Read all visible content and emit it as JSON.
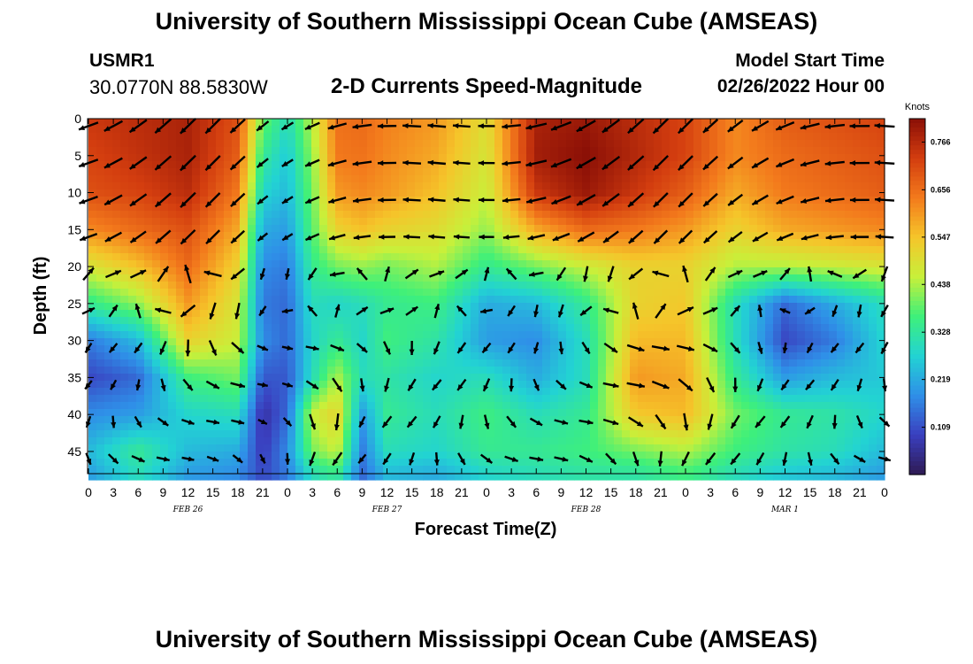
{
  "page": {
    "title": "University of Southern Mississippi Ocean Cube (AMSEAS)",
    "station": "USMR1",
    "coords": "30.0770N  88.5830W",
    "product": "2-D Currents Speed-Magnitude",
    "model_start_label": "Model Start Time",
    "model_start_value": "02/26/2022 Hour 00",
    "footer_title": "University of Southern Mississippi Ocean Cube (AMSEAS)"
  },
  "colors": {
    "scale": [
      "#2e1a53",
      "#3a3fbf",
      "#2f8fe8",
      "#22d3d3",
      "#3ef07a",
      "#c8f03a",
      "#f5c52a",
      "#f37a1c",
      "#d33d0f",
      "#8a0f06"
    ],
    "arrow": "#000000"
  },
  "chart_data": {
    "type": "heatmap",
    "title": "2-D Currents Speed-Magnitude",
    "xlabel": "Forecast Time(Z)",
    "ylabel": "Depth (ft)",
    "x_tick_labels": [
      "0",
      "3",
      "6",
      "9",
      "12",
      "15",
      "18",
      "21",
      "0",
      "3",
      "6",
      "9",
      "12",
      "15",
      "18",
      "21",
      "0",
      "3",
      "6",
      "9",
      "12",
      "15",
      "18",
      "21",
      "0",
      "3",
      "6",
      "9",
      "12",
      "15",
      "18",
      "21",
      "0"
    ],
    "x_range_hours": [
      0,
      96
    ],
    "date_labels": [
      {
        "label": "FEB 26",
        "hour": 12
      },
      {
        "label": "FEB 27",
        "hour": 36
      },
      {
        "label": "FEB 28",
        "hour": 60
      },
      {
        "label": "MAR 1",
        "hour": 84
      }
    ],
    "y_tick_labels": [
      "0",
      "5",
      "10",
      "15",
      "20",
      "25",
      "30",
      "35",
      "40",
      "45"
    ],
    "y_range_ft": [
      0,
      48
    ],
    "y_inverted": true,
    "colorbar": {
      "unit": "Knots",
      "ticks": [
        "0.766",
        "0.656",
        "0.547",
        "0.438",
        "0.328",
        "0.219",
        "0.109"
      ],
      "range": [
        0,
        0.82
      ]
    },
    "speed_field": {
      "description_hours": [
        0,
        6,
        12,
        18,
        21,
        24,
        27,
        30,
        33,
        36,
        42,
        48,
        54,
        60,
        66,
        72,
        78,
        84,
        90,
        96
      ],
      "depths_ft": [
        0,
        5,
        10,
        15,
        20,
        25,
        30,
        35,
        40,
        45,
        48
      ],
      "values": [
        [
          0.74,
          0.76,
          0.78,
          0.7,
          0.4,
          0.3,
          0.45,
          0.65,
          0.66,
          0.63,
          0.6,
          0.5,
          0.78,
          0.8,
          0.76,
          0.72,
          0.62,
          0.68,
          0.7,
          0.72
        ],
        [
          0.72,
          0.75,
          0.78,
          0.68,
          0.34,
          0.26,
          0.42,
          0.64,
          0.65,
          0.62,
          0.58,
          0.48,
          0.79,
          0.82,
          0.77,
          0.72,
          0.62,
          0.66,
          0.68,
          0.7
        ],
        [
          0.7,
          0.72,
          0.76,
          0.64,
          0.28,
          0.24,
          0.4,
          0.6,
          0.62,
          0.6,
          0.55,
          0.46,
          0.74,
          0.8,
          0.74,
          0.68,
          0.58,
          0.64,
          0.66,
          0.68
        ],
        [
          0.62,
          0.66,
          0.7,
          0.58,
          0.22,
          0.2,
          0.38,
          0.52,
          0.55,
          0.52,
          0.5,
          0.42,
          0.58,
          0.66,
          0.64,
          0.6,
          0.52,
          0.58,
          0.6,
          0.62
        ],
        [
          0.48,
          0.55,
          0.66,
          0.52,
          0.18,
          0.16,
          0.34,
          0.4,
          0.42,
          0.4,
          0.44,
          0.34,
          0.4,
          0.46,
          0.52,
          0.52,
          0.44,
          0.44,
          0.46,
          0.48
        ],
        [
          0.34,
          0.42,
          0.6,
          0.48,
          0.16,
          0.14,
          0.3,
          0.28,
          0.3,
          0.34,
          0.36,
          0.22,
          0.24,
          0.34,
          0.52,
          0.54,
          0.3,
          0.14,
          0.22,
          0.3
        ],
        [
          0.16,
          0.24,
          0.52,
          0.46,
          0.18,
          0.14,
          0.28,
          0.34,
          0.28,
          0.36,
          0.32,
          0.2,
          0.18,
          0.3,
          0.56,
          0.56,
          0.3,
          0.1,
          0.16,
          0.28
        ],
        [
          0.1,
          0.14,
          0.36,
          0.4,
          0.12,
          0.12,
          0.3,
          0.44,
          0.3,
          0.32,
          0.28,
          0.3,
          0.22,
          0.3,
          0.6,
          0.58,
          0.34,
          0.2,
          0.24,
          0.26
        ],
        [
          0.18,
          0.2,
          0.28,
          0.3,
          0.06,
          0.14,
          0.46,
          0.52,
          0.2,
          0.34,
          0.3,
          0.36,
          0.3,
          0.34,
          0.54,
          0.56,
          0.4,
          0.34,
          0.32,
          0.28
        ],
        [
          0.24,
          0.34,
          0.24,
          0.22,
          0.08,
          0.18,
          0.4,
          0.46,
          0.16,
          0.3,
          0.28,
          0.34,
          0.34,
          0.36,
          0.4,
          0.44,
          0.36,
          0.32,
          0.3,
          0.24
        ],
        [
          0.2,
          0.3,
          0.2,
          0.18,
          0.1,
          0.16,
          0.3,
          0.34,
          0.14,
          0.24,
          0.22,
          0.28,
          0.3,
          0.32,
          0.32,
          0.36,
          0.3,
          0.26,
          0.24,
          0.2
        ]
      ]
    }
  }
}
